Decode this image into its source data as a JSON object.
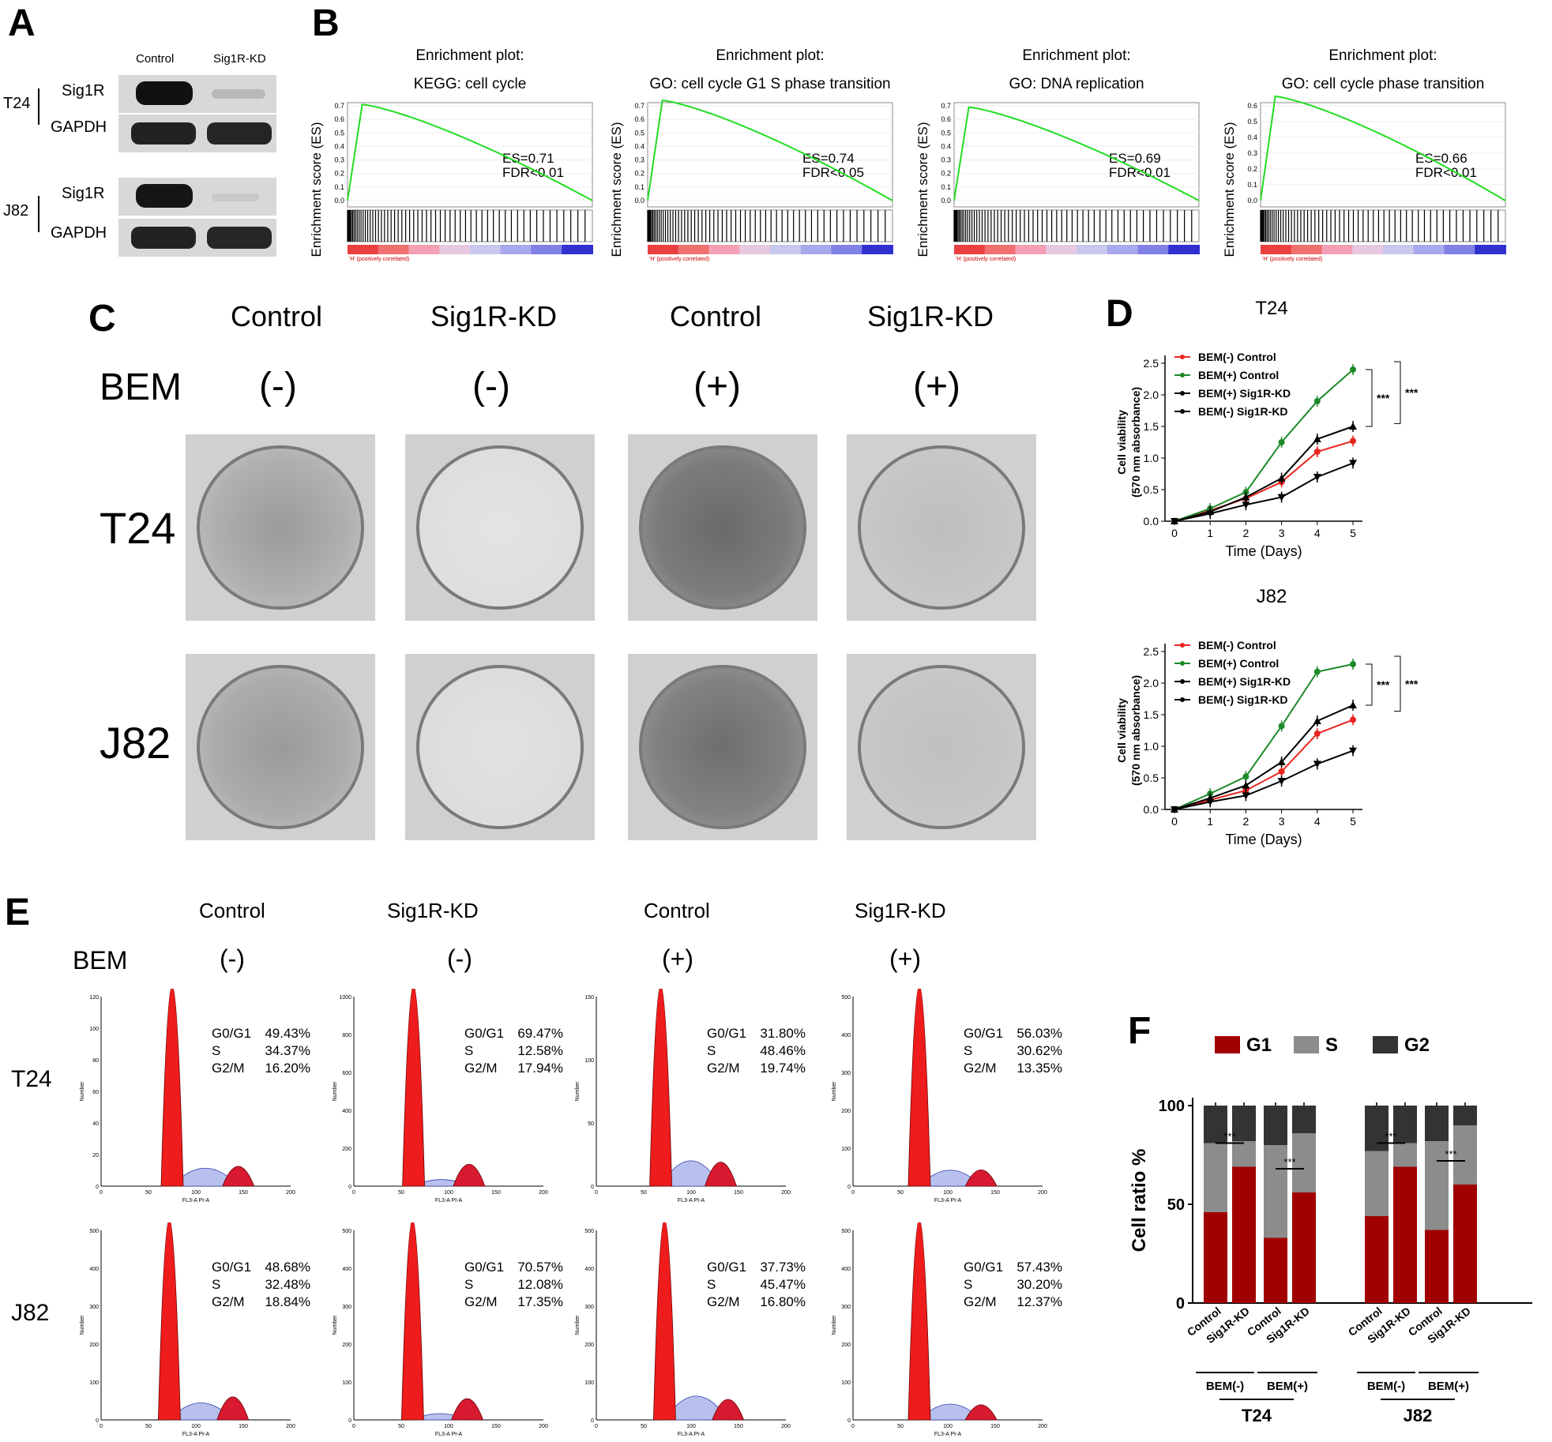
{
  "panels": {
    "A": "A",
    "B": "B",
    "C": "C",
    "D": "D",
    "E": "E",
    "F": "F"
  },
  "panel_a": {
    "col_labels": [
      "Control",
      "Sig1R-KD"
    ],
    "groups": [
      {
        "cell": "T24",
        "bands": [
          "Sig1R",
          "GAPDH"
        ],
        "intensity": [
          [
            1.0,
            0.15
          ],
          [
            1.0,
            1.0
          ]
        ]
      },
      {
        "cell": "J82",
        "bands": [
          "Sig1R",
          "GAPDH"
        ],
        "intensity": [
          [
            1.0,
            0.1
          ],
          [
            1.0,
            1.0
          ]
        ]
      }
    ]
  },
  "panel_b": {
    "ylabel": "Enrichment score (ES)",
    "corr_label": "'H' (positively correlated)",
    "line_color": "#22dd22",
    "plots": [
      {
        "title1": "Enrichment plot:",
        "title2": "KEGG: cell cycle",
        "es": "ES=0.71",
        "fdr": "FDR<0.01",
        "ticks": [
          "0.7",
          "0.6",
          "0.5",
          "0.4",
          "0.3",
          "0.2",
          "0.1",
          "0.0"
        ],
        "ymax": 0.7,
        "peak": 0.71
      },
      {
        "title1": "Enrichment plot:",
        "title2": "GO: cell cycle G1 S phase transition",
        "es": "ES=0.74",
        "fdr": "FDR<0.05",
        "ticks": [
          "0.7",
          "0.6",
          "0.5",
          "0.4",
          "0.3",
          "0.2",
          "0.1",
          "0.0"
        ],
        "ymax": 0.7,
        "peak": 0.74
      },
      {
        "title1": "Enrichment plot:",
        "title2": "GO: DNA replication",
        "es": "ES=0.69",
        "fdr": "FDR<0.01",
        "ticks": [
          "0.7",
          "0.6",
          "0.5",
          "0.4",
          "0.3",
          "0.2",
          "0.1",
          "0.0"
        ],
        "ymax": 0.7,
        "peak": 0.69
      },
      {
        "title1": "Enrichment plot:",
        "title2": "GO: cell cycle phase transition",
        "es": "ES=0.66",
        "fdr": "FDR<0.01",
        "ticks": [
          "0.6",
          "0.5",
          "0.4",
          "0.3",
          "0.2",
          "0.1",
          "0.0"
        ],
        "ymax": 0.6,
        "peak": 0.66
      }
    ]
  },
  "panel_c": {
    "col_labels": [
      "Control",
      "Sig1R-KD",
      "Control",
      "Sig1R-KD"
    ],
    "bem_label": "BEM",
    "bem_values": [
      "(-)",
      "(-)",
      "(+)",
      "(+)"
    ],
    "row_labels": [
      "T24",
      "J82"
    ]
  },
  "chart_data": [
    {
      "type": "line",
      "title": "T24",
      "xlabel": "Time (Days)",
      "ylabel": "Cell viability",
      "ylabel2": "(570 nm absorbance)",
      "x": [
        0,
        1,
        2,
        3,
        4,
        5
      ],
      "xlim": [
        0,
        5
      ],
      "ylim": [
        0,
        2.5
      ],
      "yticks": [
        "0.0",
        "0.5",
        "1.0",
        "1.5",
        "2.0",
        "2.5"
      ],
      "series": [
        {
          "name": "BEM(-) Control",
          "color": "#e8251f",
          "marker": "circle",
          "values": [
            0.0,
            0.17,
            0.36,
            0.62,
            1.1,
            1.27
          ]
        },
        {
          "name": "BEM(+) Control",
          "color": "#1e8a2a",
          "marker": "circle",
          "values": [
            0.0,
            0.2,
            0.46,
            1.25,
            1.9,
            2.4
          ]
        },
        {
          "name": "BEM(+) Sig1R-KD",
          "color": "#000000",
          "marker": "triangle-up",
          "values": [
            0.0,
            0.15,
            0.38,
            0.68,
            1.3,
            1.5
          ]
        },
        {
          "name": "BEM(-) Sig1R-KD",
          "color": "#000000",
          "marker": "triangle-down",
          "values": [
            0.0,
            0.12,
            0.26,
            0.38,
            0.7,
            0.92
          ]
        }
      ],
      "significance": [
        "***",
        "***"
      ]
    },
    {
      "type": "line",
      "title": "J82",
      "xlabel": "Time (Days)",
      "ylabel": "Cell viability",
      "ylabel2": "(570 nm absorbance)",
      "x": [
        0,
        1,
        2,
        3,
        4,
        5
      ],
      "xlim": [
        0,
        5
      ],
      "ylim": [
        0,
        2.5
      ],
      "yticks": [
        "0.0",
        "0.5",
        "1.0",
        "1.5",
        "2.0",
        "2.5"
      ],
      "series": [
        {
          "name": "BEM(-) Control",
          "color": "#e8251f",
          "marker": "circle",
          "values": [
            0.0,
            0.15,
            0.3,
            0.6,
            1.2,
            1.42
          ]
        },
        {
          "name": "BEM(+) Control",
          "color": "#1e8a2a",
          "marker": "circle",
          "values": [
            0.0,
            0.25,
            0.52,
            1.32,
            2.18,
            2.3
          ]
        },
        {
          "name": "BEM(+) Sig1R-KD",
          "color": "#000000",
          "marker": "triangle-up",
          "values": [
            0.0,
            0.18,
            0.38,
            0.75,
            1.4,
            1.65
          ]
        },
        {
          "name": "BEM(-) Sig1R-KD",
          "color": "#000000",
          "marker": "triangle-down",
          "values": [
            0.0,
            0.12,
            0.22,
            0.45,
            0.72,
            0.93
          ]
        }
      ],
      "significance": [
        "***",
        "***"
      ]
    },
    {
      "type": "bar",
      "stacked": true,
      "ylabel": "Cell ratio %",
      "ylim": [
        0,
        120
      ],
      "yticks": [
        "0",
        "50",
        "100"
      ],
      "legend": [
        {
          "name": "G1",
          "color": "#a10000"
        },
        {
          "name": "S",
          "color": "#8c8c8c"
        },
        {
          "name": "G2",
          "color": "#333333"
        }
      ],
      "categories": [
        "Control",
        "Sig1R-KD",
        "Control",
        "Sig1R-KD",
        "Control",
        "Sig1R-KD",
        "Control",
        "Sig1R-KD"
      ],
      "series": [
        {
          "name": "G1",
          "color": "#a10000",
          "values": [
            46,
            69,
            33,
            56,
            44,
            69,
            37,
            60
          ]
        },
        {
          "name": "S",
          "color": "#8c8c8c",
          "values": [
            35,
            13,
            47,
            30,
            33,
            12,
            45,
            30
          ]
        },
        {
          "name": "G2",
          "color": "#333333",
          "values": [
            19,
            18,
            20,
            14,
            23,
            19,
            18,
            10
          ]
        }
      ],
      "group_labels_1": [
        "BEM(-)",
        "BEM(+)",
        "BEM(-)",
        "BEM(+)"
      ],
      "group_labels_2": [
        "T24",
        "J82"
      ],
      "significance": "***"
    }
  ],
  "panel_e": {
    "col_labels": [
      "Control",
      "Sig1R-KD",
      "Control",
      "Sig1R-KD"
    ],
    "bem_label": "BEM",
    "bem_values": [
      "(-)",
      "(-)",
      "(+)",
      "(+)"
    ],
    "row_labels": [
      "T24",
      "J82"
    ],
    "xaxis_label": "FL3-A PI-A",
    "yaxis_label": "Number",
    "xticks": [
      "0",
      "50",
      "100",
      "150",
      "200"
    ],
    "phase_labels": [
      "G0/G1",
      "S",
      "G2/M"
    ],
    "stats": [
      [
        [
          "49.43%",
          "34.37%",
          "16.20%"
        ],
        [
          "69.47%",
          "12.58%",
          "17.94%"
        ],
        [
          "31.80%",
          "48.46%",
          "19.74%"
        ],
        [
          "56.03%",
          "30.62%",
          "13.35%"
        ]
      ],
      [
        [
          "48.68%",
          "32.48%",
          "18.84%"
        ],
        [
          "70.57%",
          "12.08%",
          "17.35%"
        ],
        [
          "37.73%",
          "45.47%",
          "16.80%"
        ],
        [
          "57.43%",
          "30.20%",
          "12.37%"
        ]
      ]
    ],
    "yticks": [
      [
        [
          "0",
          "20",
          "40",
          "60",
          "80",
          "100",
          "120"
        ],
        [
          "0",
          "200",
          "400",
          "600",
          "800",
          "1000"
        ],
        [
          "0",
          "50",
          "100",
          "150"
        ],
        [
          "0",
          "100",
          "200",
          "300",
          "400",
          "500"
        ]
      ],
      [
        [
          "0",
          "100",
          "200",
          "300",
          "400",
          "500"
        ],
        [
          "0",
          "100",
          "200",
          "300",
          "400",
          "500"
        ],
        [
          "0",
          "100",
          "200",
          "300",
          "400",
          "500"
        ],
        [
          "0",
          "100",
          "200",
          "300",
          "400",
          "500"
        ]
      ]
    ],
    "peak_positions": [
      [
        75,
        63,
        68,
        70
      ],
      [
        72,
        62,
        72,
        70
      ]
    ]
  }
}
